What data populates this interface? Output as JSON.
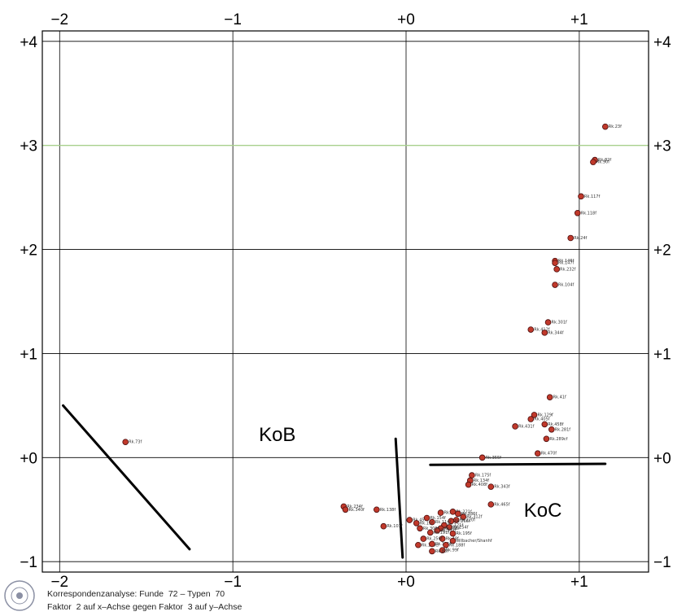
{
  "chart_data": {
    "type": "scatter",
    "title": "",
    "xlabel": "",
    "ylabel": "",
    "xlim": [
      -2.1,
      1.4
    ],
    "ylim": [
      -1.1,
      4.1
    ],
    "x_ticks": [
      -2,
      -1,
      0,
      1
    ],
    "x_tick_labels": [
      "−2",
      "−1",
      "+0",
      "+1"
    ],
    "y_ticks": [
      -1,
      0,
      1,
      2,
      3,
      4
    ],
    "y_tick_labels": [
      "−1",
      "+0",
      "+1",
      "+2",
      "+3",
      "+4"
    ],
    "grid": true,
    "highlight_line_y": 3,
    "highlight_color": "#a8d08d",
    "point_color": "#c0392b",
    "point_stroke": "#4a0d0d",
    "region_labels": [
      {
        "text": "KoB",
        "x": -0.85,
        "y": 0.16
      },
      {
        "text": "KoC",
        "x": 0.68,
        "y": -0.57
      }
    ],
    "separator_lines": [
      {
        "x1": -1.98,
        "y1": 0.5,
        "x2": -1.25,
        "y2": -0.88
      },
      {
        "x1": -0.06,
        "y1": 0.18,
        "x2": -0.02,
        "y2": -0.96
      },
      {
        "x1": 0.14,
        "y1": -0.07,
        "x2": 1.15,
        "y2": -0.06
      }
    ],
    "points": [
      {
        "label": "Rk.23f",
        "x": 1.15,
        "y": 3.18
      },
      {
        "label": "Rk.82f",
        "x": 1.09,
        "y": 2.86
      },
      {
        "label": "Rk.90f",
        "x": 1.08,
        "y": 2.84
      },
      {
        "label": "Rk.117f",
        "x": 1.01,
        "y": 2.51
      },
      {
        "label": "Rk.118f",
        "x": 0.99,
        "y": 2.35
      },
      {
        "label": "Rk.24f",
        "x": 0.95,
        "y": 2.11
      },
      {
        "label": "Rk.146f",
        "x": 0.86,
        "y": 1.89
      },
      {
        "label": "Rk.147f",
        "x": 0.86,
        "y": 1.87
      },
      {
        "label": "Rk.232f",
        "x": 0.87,
        "y": 1.81
      },
      {
        "label": "Rk.104f",
        "x": 0.86,
        "y": 1.66
      },
      {
        "label": "Rk.301f",
        "x": 0.82,
        "y": 1.3
      },
      {
        "label": "Rk.412f",
        "x": 0.72,
        "y": 1.23
      },
      {
        "label": "Rk.344f",
        "x": 0.8,
        "y": 1.2
      },
      {
        "label": "Rk.41f",
        "x": 0.83,
        "y": 0.58
      },
      {
        "label": "Rk.129f",
        "x": 0.74,
        "y": 0.41
      },
      {
        "label": "Rk.405f",
        "x": 0.72,
        "y": 0.37
      },
      {
        "label": "Rk.458f",
        "x": 0.8,
        "y": 0.32
      },
      {
        "label": "Rk.431f",
        "x": 0.63,
        "y": 0.3
      },
      {
        "label": "Rk.281f",
        "x": 0.84,
        "y": 0.27
      },
      {
        "label": "Rk.289cf",
        "x": 0.81,
        "y": 0.18
      },
      {
        "label": "Rk.470f",
        "x": 0.76,
        "y": 0.04
      },
      {
        "label": "Rk.355f",
        "x": 0.44,
        "y": 0.0
      },
      {
        "label": "Rk.73f",
        "x": -1.62,
        "y": 0.15
      },
      {
        "label": "Rk.175f",
        "x": 0.38,
        "y": -0.17
      },
      {
        "label": "Rk.134f",
        "x": 0.37,
        "y": -0.22
      },
      {
        "label": "Rk.408f",
        "x": 0.36,
        "y": -0.26
      },
      {
        "label": "Rk.343f",
        "x": 0.49,
        "y": -0.28
      },
      {
        "label": "Rk.465f",
        "x": 0.49,
        "y": -0.45
      },
      {
        "label": "Rk.234f",
        "x": -0.36,
        "y": -0.47
      },
      {
        "label": "Rk.340f",
        "x": -0.35,
        "y": -0.5
      },
      {
        "label": "Rk.138f",
        "x": -0.17,
        "y": -0.5
      },
      {
        "label": "Rk.103f",
        "x": -0.13,
        "y": -0.66
      },
      {
        "label": "Rk.215f",
        "x": 0.2,
        "y": -0.53
      },
      {
        "label": "Rk.221f",
        "x": 0.27,
        "y": -0.52
      },
      {
        "label": "Rk.286f",
        "x": 0.3,
        "y": -0.54
      },
      {
        "label": "Rk.312f",
        "x": 0.33,
        "y": -0.57
      },
      {
        "label": "Rk.220f",
        "x": 0.29,
        "y": -0.6
      },
      {
        "label": "Rk.266f",
        "x": 0.26,
        "y": -0.61
      },
      {
        "label": "Rk.114f",
        "x": 0.15,
        "y": -0.62
      },
      {
        "label": "Rk.121f",
        "x": 0.22,
        "y": -0.65
      },
      {
        "label": "Rk.254f",
        "x": 0.25,
        "y": -0.67
      },
      {
        "label": "Rk.198f",
        "x": 0.2,
        "y": -0.68
      },
      {
        "label": "Rk.211f",
        "x": 0.18,
        "y": -0.7
      },
      {
        "label": "Rk.191f",
        "x": 0.14,
        "y": -0.72
      },
      {
        "label": "Rk.195f",
        "x": 0.27,
        "y": -0.73
      },
      {
        "label": "Rk.48f",
        "x": 0.21,
        "y": -0.78
      },
      {
        "label": "Rk.256f",
        "x": 0.1,
        "y": -0.78
      },
      {
        "label": "Rk.45f",
        "x": 0.02,
        "y": -0.6
      },
      {
        "label": "Rk.11f",
        "x": 0.06,
        "y": -0.63
      },
      {
        "label": "Rk.154f",
        "x": 0.12,
        "y": -0.58
      },
      {
        "label": "Rk.306f",
        "x": 0.08,
        "y": -0.68
      },
      {
        "label": "Wilbacher/Shanhf",
        "x": 0.27,
        "y": -0.8
      },
      {
        "label": "Rk.158cf",
        "x": 0.07,
        "y": -0.84
      },
      {
        "label": "Rk.151f",
        "x": 0.15,
        "y": -0.83
      },
      {
        "label": "Rk.188f",
        "x": 0.23,
        "y": -0.84
      },
      {
        "label": "Rk.99f",
        "x": 0.21,
        "y": -0.89
      },
      {
        "label": "Rk.85f",
        "x": 0.15,
        "y": -0.9
      }
    ]
  },
  "caption": {
    "line1": "Korrespondenzanalyse: Funde  72 – Typen  70",
    "line2": "Faktor  2 auf x–Achse gegen Faktor  3 auf y–Achse"
  }
}
